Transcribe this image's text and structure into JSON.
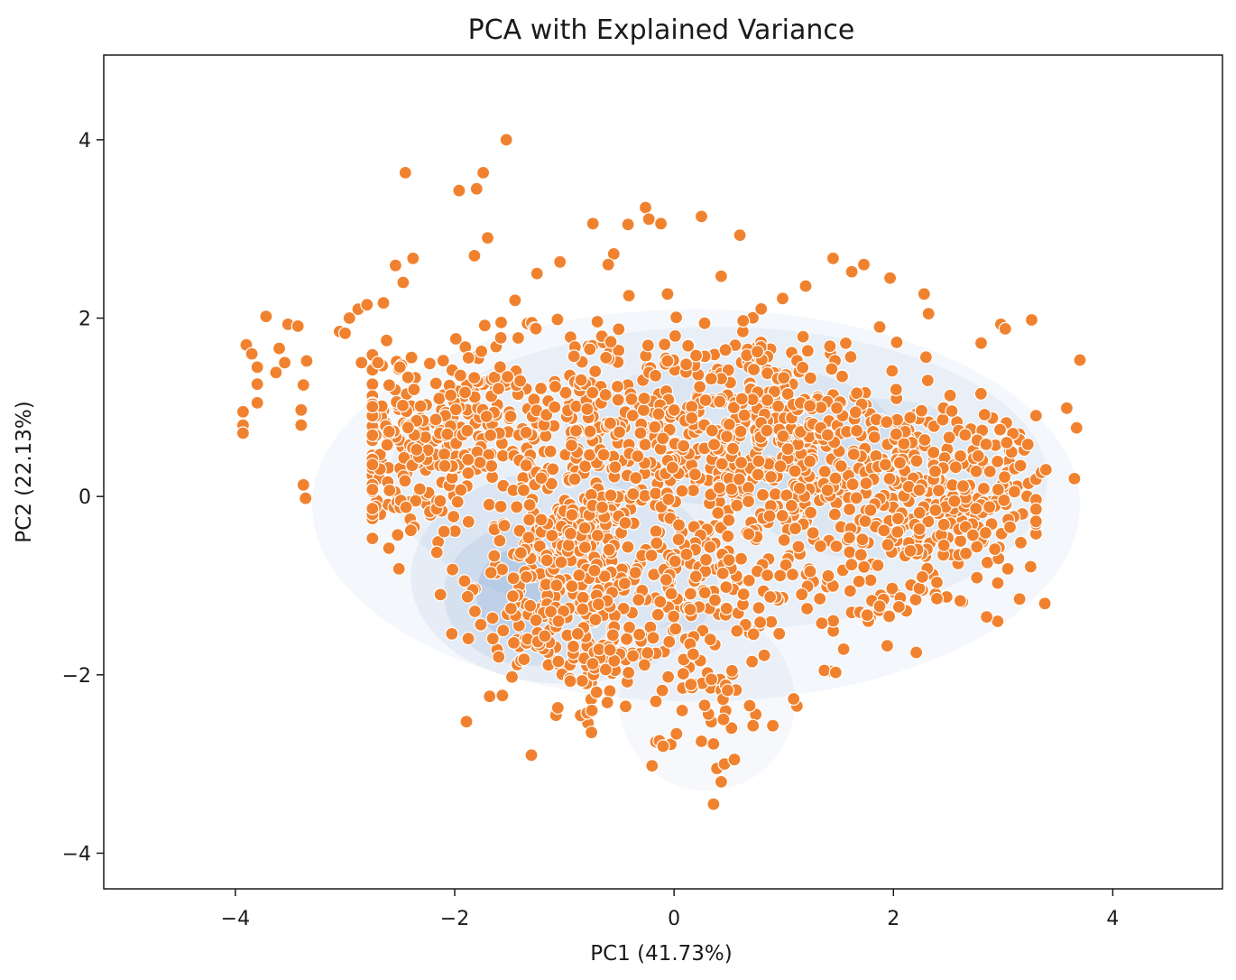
{
  "chart_data": {
    "type": "scatter",
    "title": "PCA with Explained Variance",
    "xlabel": "PC1 (41.73%)",
    "ylabel": "PC2 (22.13%)",
    "xlim": [
      -5.2,
      5.0
    ],
    "ylim": [
      -4.4,
      4.95
    ],
    "xticks": [
      -4,
      -2,
      0,
      2,
      4
    ],
    "yticks": [
      -4,
      -2,
      0,
      2,
      4
    ],
    "xtick_labels": [
      "−4",
      "−2",
      "0",
      "2",
      "4"
    ],
    "ytick_labels": [
      "−4",
      "−2",
      "0",
      "2",
      "4"
    ],
    "grid": false,
    "legend": null,
    "point_color": "#f0822f",
    "density_color": "#4a7bbf",
    "density_layers": [
      {
        "cx": 0.2,
        "cy": -0.1,
        "rx": 3.5,
        "ry": 2.2,
        "opacity": 0.06
      },
      {
        "cx": 0.4,
        "cy": 0.2,
        "rx": 3.0,
        "ry": 1.7,
        "opacity": 0.06
      },
      {
        "cx": 0.3,
        "cy": -2.3,
        "rx": 0.8,
        "ry": 1.0,
        "opacity": 0.05
      },
      {
        "cx": -1.0,
        "cy": -0.9,
        "rx": 1.4,
        "ry": 1.2,
        "opacity": 0.08
      },
      {
        "cx": -1.3,
        "cy": -1.1,
        "rx": 0.8,
        "ry": 0.8,
        "opacity": 0.1
      },
      {
        "cx": -1.45,
        "cy": -1.1,
        "rx": 0.35,
        "ry": 0.5,
        "opacity": 0.16
      },
      {
        "cx": 0.5,
        "cy": 0.7,
        "rx": 1.5,
        "ry": 0.8,
        "opacity": 0.08
      },
      {
        "cx": 1.8,
        "cy": 0.2,
        "rx": 1.2,
        "ry": 0.9,
        "opacity": 0.07
      }
    ],
    "outliers": [
      [
        -1.53,
        4.0
      ],
      [
        -2.45,
        3.63
      ],
      [
        -1.74,
        3.63
      ],
      [
        -1.96,
        3.43
      ],
      [
        -1.8,
        3.45
      ],
      [
        -0.26,
        3.24
      ],
      [
        -0.23,
        3.11
      ],
      [
        -0.12,
        3.06
      ],
      [
        0.25,
        3.14
      ],
      [
        -0.74,
        3.06
      ],
      [
        -0.42,
        3.05
      ],
      [
        -1.7,
        2.9
      ],
      [
        -1.82,
        2.7
      ],
      [
        0.6,
        2.93
      ],
      [
        -2.38,
        2.67
      ],
      [
        -2.54,
        2.59
      ],
      [
        -2.47,
        2.4
      ],
      [
        -3.9,
        1.7
      ],
      [
        -3.85,
        1.6
      ],
      [
        -3.72,
        2.02
      ],
      [
        -3.52,
        1.93
      ],
      [
        -3.43,
        1.91
      ],
      [
        -3.6,
        1.66
      ],
      [
        -3.35,
        1.52
      ],
      [
        -3.63,
        1.39
      ],
      [
        -3.8,
        1.45
      ],
      [
        -3.55,
        1.5
      ],
      [
        -3.8,
        1.26
      ],
      [
        -3.8,
        1.05
      ],
      [
        -3.38,
        1.25
      ],
      [
        -3.4,
        0.97
      ],
      [
        -3.4,
        0.8
      ],
      [
        -3.93,
        0.95
      ],
      [
        -3.93,
        0.8
      ],
      [
        -3.93,
        0.71
      ],
      [
        -3.38,
        0.13
      ],
      [
        -3.36,
        -0.02
      ],
      [
        -3.05,
        1.85
      ],
      [
        -3.0,
        1.83
      ],
      [
        -2.96,
        2.0
      ],
      [
        -2.88,
        2.1
      ],
      [
        -2.8,
        2.15
      ],
      [
        -2.65,
        2.17
      ],
      [
        -2.85,
        1.5
      ],
      [
        -2.7,
        1.5
      ],
      [
        -2.5,
        1.45
      ],
      [
        1.45,
        2.67
      ],
      [
        1.62,
        2.52
      ],
      [
        1.73,
        2.6
      ],
      [
        1.97,
        2.45
      ],
      [
        2.28,
        2.27
      ],
      [
        2.32,
        2.05
      ],
      [
        2.8,
        1.72
      ],
      [
        2.98,
        1.93
      ],
      [
        3.02,
        1.88
      ],
      [
        3.26,
        1.98
      ],
      [
        3.7,
        1.53
      ],
      [
        3.58,
        0.99
      ],
      [
        3.67,
        0.77
      ],
      [
        3.65,
        0.2
      ],
      [
        3.35,
        0.27
      ],
      [
        3.39,
        0.3
      ],
      [
        3.3,
        -0.28
      ],
      [
        3.38,
        -1.2
      ],
      [
        3.15,
        -1.15
      ],
      [
        2.95,
        -1.4
      ],
      [
        2.85,
        -1.35
      ],
      [
        0.36,
        -3.45
      ],
      [
        0.43,
        -3.2
      ],
      [
        0.39,
        -3.05
      ],
      [
        0.46,
        -3.0
      ],
      [
        0.55,
        -2.95
      ],
      [
        -0.2,
        -3.02
      ],
      [
        -0.1,
        -2.8
      ],
      [
        1.12,
        -2.35
      ],
      [
        1.09,
        -2.27
      ],
      [
        0.9,
        -2.57
      ],
      [
        0.72,
        -2.57
      ],
      [
        0.45,
        -2.5
      ],
      [
        -1.06,
        -2.37
      ],
      [
        -0.75,
        -2.4
      ],
      [
        -2.13,
        -1.1
      ],
      [
        -2.02,
        -0.82
      ],
      [
        -2.75,
        -0.47
      ],
      [
        -2.6,
        -0.58
      ],
      [
        -2.4,
        -0.38
      ],
      [
        -0.06,
        1.52
      ],
      [
        0.01,
        1.8
      ],
      [
        0.2,
        1.58
      ],
      [
        -0.06,
        2.27
      ],
      [
        0.43,
        2.47
      ],
      [
        -0.55,
        2.72
      ],
      [
        -0.6,
        2.6
      ],
      [
        -1.04,
        2.63
      ],
      [
        -1.25,
        2.5
      ],
      [
        -1.45,
        2.2
      ],
      [
        0.99,
        2.22
      ],
      [
        1.2,
        2.36
      ],
      [
        0.63,
        1.97
      ],
      [
        -0.7,
        1.96
      ]
    ],
    "clusters": [
      {
        "cx": -2.4,
        "cy": 0.5,
        "sx": 0.35,
        "sy": 0.5,
        "n": 170
      },
      {
        "cx": -1.7,
        "cy": 0.9,
        "sx": 0.45,
        "sy": 0.45,
        "n": 160
      },
      {
        "cx": -1.1,
        "cy": -1.0,
        "sx": 0.35,
        "sy": 0.6,
        "n": 200
      },
      {
        "cx": -0.7,
        "cy": -0.4,
        "sx": 0.45,
        "sy": 0.75,
        "n": 190
      },
      {
        "cx": -0.7,
        "cy": 1.2,
        "sx": 0.45,
        "sy": 0.45,
        "n": 70
      },
      {
        "cx": 0.3,
        "cy": 0.5,
        "sx": 0.55,
        "sy": 0.55,
        "n": 230
      },
      {
        "cx": 0.9,
        "cy": 0.9,
        "sx": 0.45,
        "sy": 0.5,
        "n": 150
      },
      {
        "cx": 1.4,
        "cy": 0.3,
        "sx": 0.55,
        "sy": 0.55,
        "n": 170
      },
      {
        "cx": 2.2,
        "cy": 0.1,
        "sx": 0.45,
        "sy": 0.5,
        "n": 200
      },
      {
        "cx": 2.8,
        "cy": -0.1,
        "sx": 0.3,
        "sy": 0.5,
        "n": 80
      },
      {
        "cx": 1.6,
        "cy": -1.0,
        "sx": 0.45,
        "sy": 0.4,
        "n": 80
      },
      {
        "cx": 0.2,
        "cy": -1.0,
        "sx": 0.45,
        "sy": 0.45,
        "n": 90
      },
      {
        "cx": 0.3,
        "cy": -2.2,
        "sx": 0.25,
        "sy": 0.35,
        "n": 40
      },
      {
        "cx": -0.6,
        "cy": -1.7,
        "sx": 0.25,
        "sy": 0.35,
        "n": 60
      }
    ],
    "data_window": {
      "x": [
        -2.75,
        3.3
      ],
      "y": [
        -2.9,
        2.5
      ]
    }
  }
}
